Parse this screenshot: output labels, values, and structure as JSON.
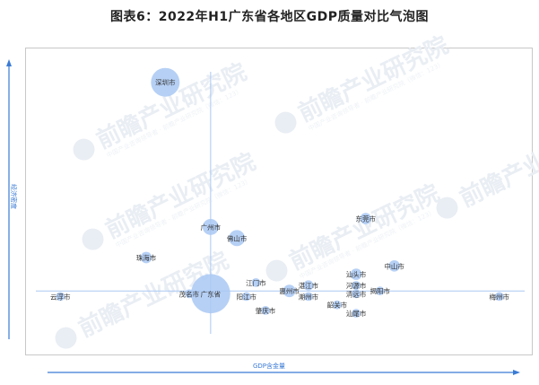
{
  "title": "图表6：2022年H1广东省各地区GDP质量对比气泡图",
  "watermark": {
    "brand": "前瞻产业研究院",
    "sub": "中国产业咨询领导者 · 前瞻产业研究院（微信：123）"
  },
  "colors": {
    "bubble": "#a9c8f3",
    "axis": "#3a7bd5",
    "center_line": "#a9c8f3",
    "frame": "#c8c8c8"
  },
  "chart_data": {
    "type": "scatter",
    "title": "图表6：2022年H1广东省各地区GDP质量对比气泡图",
    "xlabel": "GDP含金量",
    "ylabel": "经济密度",
    "x_ticks_shown": false,
    "y_ticks_shown": false,
    "center_lines": {
      "x": 0.355,
      "y": 0.18
    },
    "points": [
      {
        "name": "深圳市",
        "x": 0.26,
        "y": 0.93,
        "size": 16
      },
      {
        "name": "广州市",
        "x": 0.355,
        "y": 0.41,
        "size": 5
      },
      {
        "name": "佛山市",
        "x": 0.41,
        "y": 0.37,
        "size": 5
      },
      {
        "name": "东莞市",
        "x": 0.68,
        "y": 0.44,
        "size": 2.5
      },
      {
        "name": "珠海市",
        "x": 0.22,
        "y": 0.3,
        "size": 2.5
      },
      {
        "name": "中山市",
        "x": 0.74,
        "y": 0.27,
        "size": 2.5
      },
      {
        "name": "广东省",
        "x": 0.355,
        "y": 0.17,
        "size": 30
      },
      {
        "name": "茂名市",
        "x": 0.31,
        "y": 0.17,
        "size": 1.5
      },
      {
        "name": "江门市",
        "x": 0.45,
        "y": 0.21,
        "size": 1.5
      },
      {
        "name": "阳江市",
        "x": 0.43,
        "y": 0.16,
        "size": 1.5
      },
      {
        "name": "惠州市",
        "x": 0.52,
        "y": 0.18,
        "size": 3
      },
      {
        "name": "湛江市",
        "x": 0.56,
        "y": 0.2,
        "size": 2
      },
      {
        "name": "肇庆市",
        "x": 0.47,
        "y": 0.11,
        "size": 1.5
      },
      {
        "name": "潮州市",
        "x": 0.56,
        "y": 0.16,
        "size": 1.5
      },
      {
        "name": "汕头市",
        "x": 0.66,
        "y": 0.24,
        "size": 2.5
      },
      {
        "name": "河源市",
        "x": 0.66,
        "y": 0.2,
        "size": 1.5
      },
      {
        "name": "清远市",
        "x": 0.66,
        "y": 0.17,
        "size": 1.5
      },
      {
        "name": "揭阳市",
        "x": 0.71,
        "y": 0.18,
        "size": 1.5
      },
      {
        "name": "韶关市",
        "x": 0.62,
        "y": 0.13,
        "size": 1.5
      },
      {
        "name": "汕尾市",
        "x": 0.66,
        "y": 0.1,
        "size": 1.5
      },
      {
        "name": "云浮市",
        "x": 0.04,
        "y": 0.16,
        "size": 1.5
      },
      {
        "name": "梅州市",
        "x": 0.96,
        "y": 0.16,
        "size": 1.5
      }
    ]
  }
}
